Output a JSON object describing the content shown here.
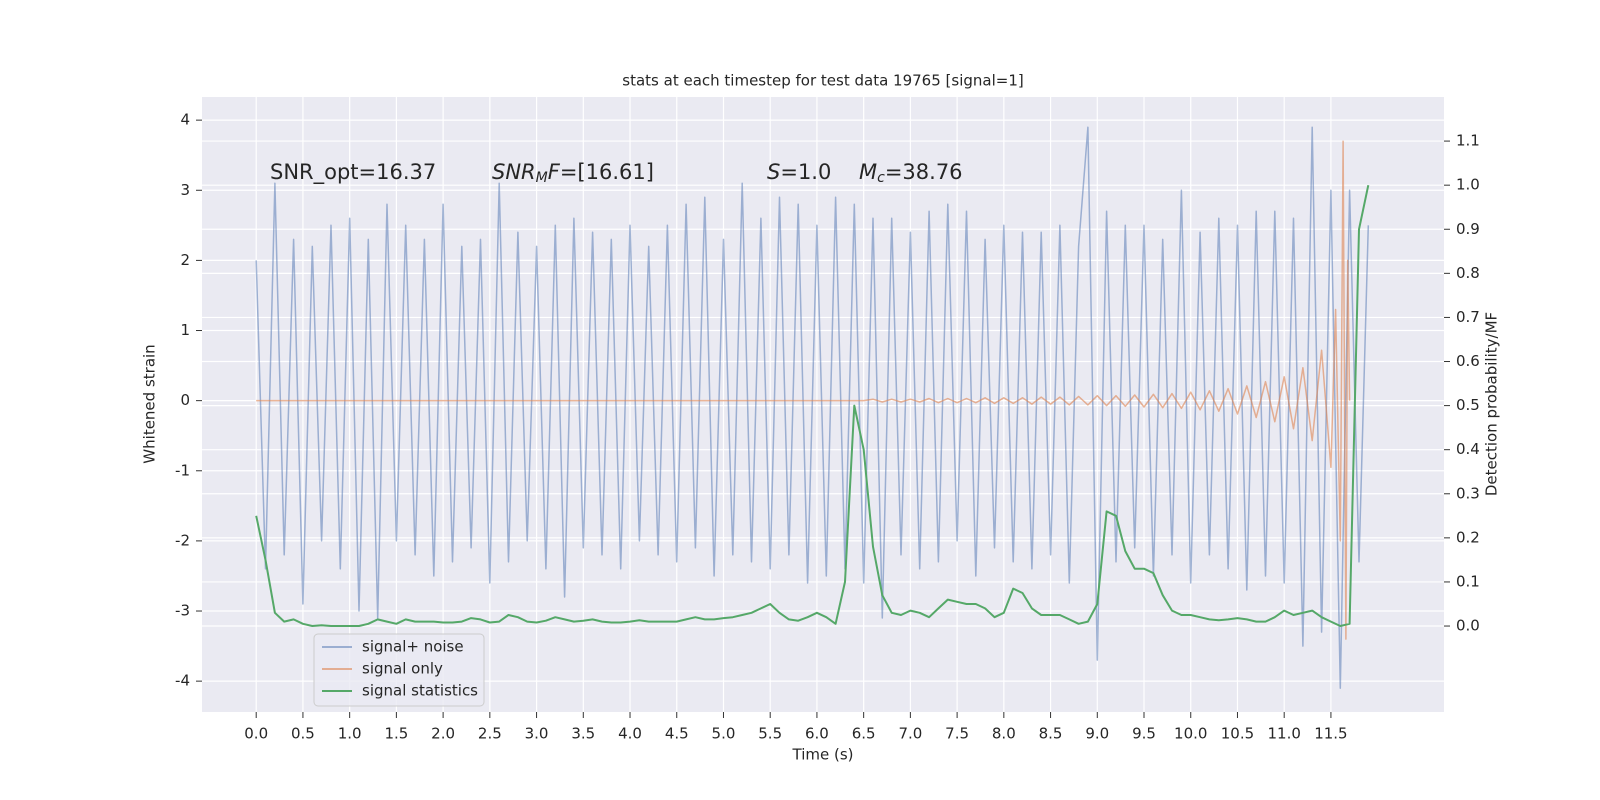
{
  "chart_data": {
    "type": "line",
    "title": "stats at each timestep for test data 19765 [signal=1]",
    "xlabel": "Time (s)",
    "ylabel": "Whitened strain",
    "y2label": "Detection probability/MF",
    "annotations": [
      [
        {
          "text": "SNR_opt=16.37"
        }
      ],
      [
        {
          "text": "SNR",
          "italic": true
        },
        {
          "text": "M",
          "italic": true,
          "sub": true
        },
        {
          "text": "F",
          "italic": true
        },
        {
          "text": "=[16.61]"
        }
      ],
      [
        {
          "text": "S",
          "italic": true
        },
        {
          "text": "=1.0"
        }
      ],
      [
        {
          "text": "M",
          "italic": true
        },
        {
          "text": "c",
          "italic": true,
          "sub": true
        },
        {
          "text": "=38.76"
        }
      ]
    ],
    "x": [
      0.0,
      0.1,
      0.2,
      0.3,
      0.4,
      0.5,
      0.6,
      0.7,
      0.8,
      0.9,
      1.0,
      1.1,
      1.2,
      1.3,
      1.4,
      1.5,
      1.6,
      1.7,
      1.8,
      1.9,
      2.0,
      2.1,
      2.2,
      2.3,
      2.4,
      2.5,
      2.6,
      2.7,
      2.8,
      2.9,
      3.0,
      3.1,
      3.2,
      3.3,
      3.4,
      3.5,
      3.6,
      3.7,
      3.8,
      3.9,
      4.0,
      4.1,
      4.2,
      4.3,
      4.4,
      4.5,
      4.6,
      4.7,
      4.8,
      4.9,
      5.0,
      5.1,
      5.2,
      5.3,
      5.4,
      5.5,
      5.6,
      5.7,
      5.8,
      5.9,
      6.0,
      6.1,
      6.2,
      6.3,
      6.4,
      6.5,
      6.6,
      6.7,
      6.8,
      6.9,
      7.0,
      7.1,
      7.2,
      7.3,
      7.4,
      7.5,
      7.6,
      7.7,
      7.8,
      7.9,
      8.0,
      8.1,
      8.2,
      8.3,
      8.4,
      8.5,
      8.6,
      8.7,
      8.8,
      8.9,
      9.0,
      9.1,
      9.2,
      9.3,
      9.4,
      9.5,
      9.6,
      9.7,
      9.8,
      9.9,
      10.0,
      10.1,
      10.2,
      10.3,
      10.4,
      10.5,
      10.6,
      10.7,
      10.8,
      10.9,
      11.0,
      11.1,
      11.2,
      11.3,
      11.4,
      11.5,
      11.6,
      11.7,
      11.8,
      11.9
    ],
    "series": [
      {
        "name": "signal+ noise",
        "color": "#4c72b0",
        "opacity": 0.5,
        "values": [
          2.0,
          -2.4,
          3.1,
          -2.2,
          2.3,
          -2.9,
          2.2,
          -2.0,
          2.5,
          -2.4,
          2.6,
          -3.0,
          2.3,
          -3.1,
          2.8,
          -2.0,
          2.5,
          -2.2,
          2.3,
          -2.5,
          2.8,
          -2.3,
          2.2,
          -2.1,
          2.3,
          -2.6,
          3.1,
          -2.3,
          2.4,
          -2.0,
          2.2,
          -2.4,
          2.5,
          -2.8,
          2.6,
          -2.1,
          2.4,
          -2.2,
          2.3,
          -2.4,
          2.5,
          -2.0,
          2.2,
          -2.2,
          2.5,
          -2.3,
          2.8,
          -2.1,
          2.9,
          -2.5,
          2.3,
          -2.2,
          3.1,
          -2.3,
          2.6,
          -2.4,
          2.9,
          -2.2,
          2.8,
          -2.6,
          2.5,
          -2.5,
          2.9,
          -2.4,
          2.8,
          -2.6,
          2.6,
          -3.1,
          2.6,
          -2.2,
          2.4,
          -2.4,
          2.7,
          -2.3,
          2.8,
          -2.0,
          2.7,
          -2.5,
          2.3,
          -2.1,
          2.5,
          -2.3,
          2.4,
          -2.4,
          2.4,
          -2.2,
          2.5,
          -2.6,
          2.2,
          3.9,
          -3.7,
          2.7,
          -2.3,
          2.5,
          -2.1,
          2.5,
          -2.5,
          2.3,
          -2.2,
          3.0,
          -2.6,
          2.4,
          -2.2,
          2.6,
          -2.4,
          2.5,
          -2.7,
          2.7,
          -2.5,
          2.7,
          -2.6,
          2.6,
          -3.5,
          3.9,
          -3.3,
          3.0,
          -4.1,
          3.0,
          -2.3,
          2.5
        ]
      },
      {
        "name": "signal only",
        "color": "#dd8452",
        "opacity": 0.6,
        "x": [
          0,
          6.5,
          6.6,
          6.7,
          6.8,
          6.9,
          7.0,
          7.1,
          7.2,
          7.3,
          7.4,
          7.5,
          7.6,
          7.7,
          7.8,
          7.9,
          8.0,
          8.1,
          8.2,
          8.3,
          8.4,
          8.5,
          8.6,
          8.7,
          8.8,
          8.9,
          9.0,
          9.1,
          9.2,
          9.3,
          9.4,
          9.5,
          9.6,
          9.7,
          9.8,
          9.9,
          10.0,
          10.1,
          10.2,
          10.3,
          10.4,
          10.5,
          10.6,
          10.7,
          10.8,
          10.9,
          11.0,
          11.1,
          11.2,
          11.3,
          11.4,
          11.5,
          11.55,
          11.6,
          11.63,
          11.66,
          11.68,
          11.7
        ],
        "values": [
          0,
          0,
          0.02,
          -0.02,
          0.02,
          -0.02,
          0.02,
          -0.02,
          0.03,
          -0.03,
          0.03,
          -0.03,
          0.03,
          -0.03,
          0.04,
          -0.04,
          0.04,
          -0.04,
          0.04,
          -0.05,
          0.05,
          -0.05,
          0.05,
          -0.06,
          0.06,
          -0.06,
          0.07,
          -0.07,
          0.07,
          -0.08,
          0.08,
          -0.09,
          0.09,
          -0.1,
          0.1,
          -0.11,
          0.12,
          -0.13,
          0.14,
          -0.15,
          0.17,
          -0.19,
          0.21,
          -0.24,
          0.27,
          -0.3,
          0.34,
          -0.4,
          0.47,
          -0.57,
          0.72,
          -0.95,
          1.3,
          -2.0,
          3.7,
          -3.4,
          2.0,
          0
        ]
      },
      {
        "name": "signal statistics",
        "color": "#55a868",
        "opacity": 1,
        "axis": "y2",
        "values": [
          0.25,
          0.15,
          0.03,
          0.01,
          0.015,
          0.005,
          0,
          0.002,
          0,
          0,
          0,
          0,
          0.005,
          0.015,
          0.01,
          0.005,
          0.015,
          0.01,
          0.01,
          0.01,
          0.008,
          0.008,
          0.01,
          0.018,
          0.015,
          0.008,
          0.01,
          0.025,
          0.02,
          0.01,
          0.008,
          0.012,
          0.02,
          0.015,
          0.01,
          0.012,
          0.015,
          0.01,
          0.008,
          0.008,
          0.01,
          0.013,
          0.01,
          0.01,
          0.01,
          0.01,
          0.015,
          0.02,
          0.015,
          0.015,
          0.018,
          0.02,
          0.025,
          0.03,
          0.04,
          0.05,
          0.03,
          0.015,
          0.012,
          0.02,
          0.03,
          0.02,
          0.005,
          0.1,
          0.5,
          0.4,
          0.18,
          0.07,
          0.03,
          0.025,
          0.035,
          0.03,
          0.02,
          0.04,
          0.06,
          0.055,
          0.05,
          0.05,
          0.04,
          0.02,
          0.03,
          0.085,
          0.075,
          0.04,
          0.025,
          0.025,
          0.025,
          0.015,
          0.005,
          0.01,
          0.05,
          0.26,
          0.25,
          0.17,
          0.13,
          0.13,
          0.12,
          0.07,
          0.035,
          0.025,
          0.025,
          0.02,
          0.015,
          0.013,
          0.015,
          0.018,
          0.015,
          0.01,
          0.01,
          0.02,
          0.035,
          0.025,
          0.03,
          0.035,
          0.02,
          0.01,
          0.0,
          0.005,
          0.9,
          1.0
        ]
      }
    ],
    "xlim": [
      -0.58,
      12.71
    ],
    "xticks": [
      {
        "value": 0,
        "label": "0.0"
      },
      0.5,
      {
        "value": 1,
        "label": "1.0"
      },
      1.5,
      {
        "value": 2,
        "label": "2.0"
      },
      2.5,
      {
        "value": 3,
        "label": "3.0"
      },
      3.5,
      {
        "value": 4,
        "label": "4.0"
      },
      4.5,
      {
        "value": 5,
        "label": "5.0"
      },
      5.5,
      {
        "value": 6,
        "label": "6.0"
      },
      6.5,
      {
        "value": 7,
        "label": "7.0"
      },
      7.5,
      {
        "value": 8,
        "label": "8.0"
      },
      8.5,
      {
        "value": 9,
        "label": "9.0"
      },
      9.5,
      {
        "value": 10,
        "label": "10.0"
      },
      10.5,
      {
        "value": 11,
        "label": "11.0"
      },
      11.5
    ],
    "ylim": [
      -4.44,
      4.33
    ],
    "yticks": [
      -4,
      -3,
      -2,
      -1,
      0,
      1,
      2,
      3,
      4
    ],
    "y2lim": [
      -0.195,
      1.2
    ],
    "y2ticks": [
      {
        "value": 0,
        "label": "0.0"
      },
      0.1,
      0.2,
      0.3,
      0.4,
      0.5,
      0.6,
      0.7,
      0.8,
      0.9,
      {
        "value": 1,
        "label": "1.0"
      },
      1.1
    ],
    "grid": true,
    "legend": "lower left"
  }
}
